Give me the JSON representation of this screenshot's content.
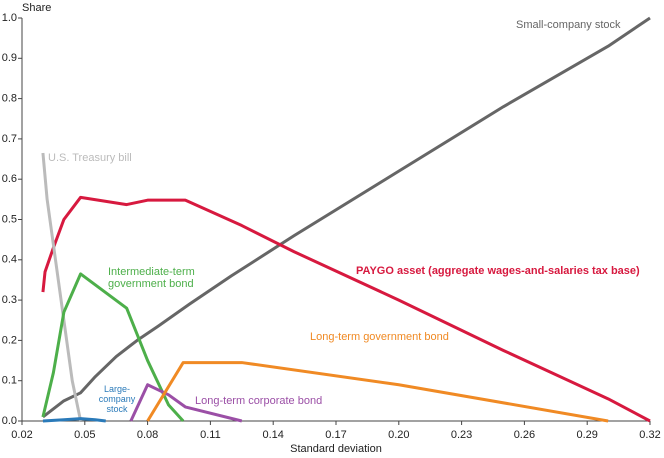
{
  "chart_data": {
    "type": "line",
    "ylabel": "Share",
    "xlabel": "Standard deviation",
    "xlim": [
      0.02,
      0.32
    ],
    "ylim": [
      0,
      1
    ],
    "xticks": [
      0.02,
      0.05,
      0.08,
      0.11,
      0.14,
      0.17,
      {
        "value": 0.2,
        "label": "0.20"
      },
      0.23,
      0.26,
      0.29,
      0.32
    ],
    "yticks": [
      {
        "value": 0,
        "label": "0.0"
      },
      0.1,
      0.2,
      0.3,
      0.4,
      0.5,
      0.6,
      0.7,
      0.8,
      0.9,
      {
        "value": 1,
        "label": "1.0"
      }
    ],
    "series": [
      {
        "name": "Small-company stock",
        "color": "#666666",
        "x": [
          0.03,
          0.04,
          0.048,
          0.055,
          0.065,
          0.075,
          0.085,
          0.1,
          0.12,
          0.15,
          0.2,
          0.25,
          0.3,
          0.32
        ],
        "values": [
          0.01,
          0.05,
          0.07,
          0.11,
          0.16,
          0.2,
          0.235,
          0.29,
          0.36,
          0.46,
          0.62,
          0.78,
          0.93,
          1.0
        ]
      },
      {
        "name": "PAYGO asset (aggregate wages-and-salaries tax base)",
        "color": "#d7193f",
        "x": [
          0.03,
          0.031,
          0.035,
          0.04,
          0.048,
          0.07,
          0.08,
          0.098,
          0.125,
          0.15,
          0.2,
          0.25,
          0.3,
          0.32
        ],
        "values": [
          0.32,
          0.37,
          0.43,
          0.5,
          0.555,
          0.537,
          0.548,
          0.548,
          0.485,
          0.42,
          0.3,
          0.175,
          0.055,
          0.0
        ]
      },
      {
        "name": "U.S. Treasury bill",
        "color": "#bbbbbb",
        "x": [
          0.03,
          0.032,
          0.036,
          0.04,
          0.044,
          0.048
        ],
        "values": [
          0.665,
          0.55,
          0.4,
          0.25,
          0.1,
          0.0
        ]
      },
      {
        "name": "Intermediate-term government bond",
        "color": "#4daf4a",
        "x": [
          0.03,
          0.035,
          0.04,
          0.048,
          0.07,
          0.08,
          0.09,
          0.097
        ],
        "values": [
          0.01,
          0.12,
          0.27,
          0.365,
          0.28,
          0.15,
          0.04,
          0.0
        ]
      },
      {
        "name": "Large-company stock",
        "color": "#2a7ab9",
        "x": [
          0.03,
          0.04,
          0.048,
          0.055,
          0.06
        ],
        "values": [
          0.0,
          0.003,
          0.006,
          0.003,
          0.0
        ]
      },
      {
        "name": "Long-term corporate bond",
        "color": "#9b4fa6",
        "x": [
          0.072,
          0.08,
          0.09,
          0.098,
          0.125
        ],
        "values": [
          0.0,
          0.09,
          0.065,
          0.035,
          0.0
        ]
      },
      {
        "name": "Long-term government bond",
        "color": "#f08a24",
        "x": [
          0.08,
          0.097,
          0.125,
          0.2,
          0.3
        ],
        "values": [
          0.0,
          0.145,
          0.145,
          0.09,
          0.0
        ]
      }
    ]
  }
}
